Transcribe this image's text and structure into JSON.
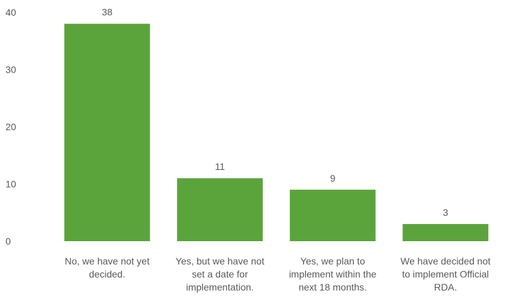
{
  "chart_data": {
    "type": "bar",
    "title": "",
    "xlabel": "",
    "ylabel": "",
    "ylim": [
      0,
      40
    ],
    "yticks": [
      0,
      10,
      20,
      30,
      40
    ],
    "grid": false,
    "bar_color": "#5ba43c",
    "categories": [
      [
        "No, we have not yet",
        "decided."
      ],
      [
        "Yes, but we have not",
        "set a date for",
        "implementation."
      ],
      [
        "Yes, we plan to",
        "implement within the",
        "next 18 months."
      ],
      [
        "We have decided not",
        "to implement Official",
        "RDA."
      ]
    ],
    "values": [
      38,
      11,
      9,
      3
    ],
    "data_labels": [
      "38",
      "11",
      "9",
      "3"
    ]
  }
}
